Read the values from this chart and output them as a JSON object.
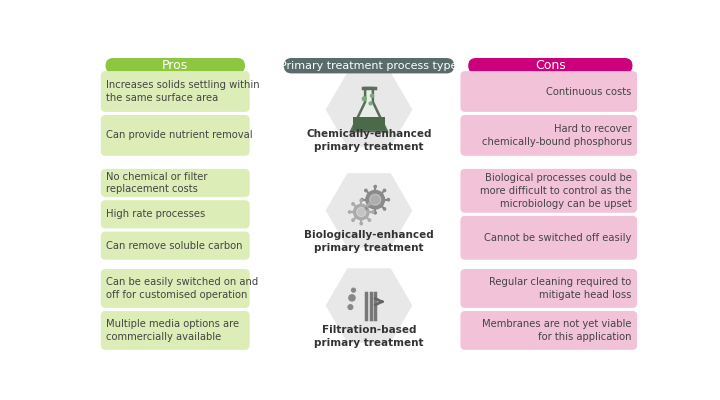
{
  "title_center": "Primary treatment process type",
  "title_left": "Pros",
  "title_right": "Cons",
  "color_pros": "#8dc63f",
  "color_cons": "#cc007a",
  "color_center_header": "#5a6b6b",
  "color_pros_box": "#ddedb8",
  "color_cons_box": "#f2c2d9",
  "color_hexagon": "#e8e8e8",
  "color_hex_border": "#d0d0d0",
  "background": "#ffffff",
  "text_color": "#444444",
  "rows": [
    {
      "center_label": "Chemically-enhanced\nprimary treatment",
      "pros": [
        "Increases solids settling within\nthe same surface area",
        "Can provide nutrient removal"
      ],
      "cons": [
        "Continuous costs",
        "Hard to recover\nchemically-bound phosphorus"
      ]
    },
    {
      "center_label": "Biologically-enhanced\nprimary treatment",
      "pros": [
        "No chemical or filter\nreplacement costs",
        "High rate processes",
        "Can remove soluble carbon"
      ],
      "cons": [
        "Biological processes could be\nmore difficult to control as the\nmicrobiology can be upset",
        "Cannot be switched off easily"
      ]
    },
    {
      "center_label": "Filtration-based\nprimary treatment",
      "pros": [
        "Can be easily switched on and\noff for customised operation",
        "Multiple media options are\ncommercially available"
      ],
      "cons": [
        "Regular cleaning required to\nmitigate head loss",
        "Membranes are not yet viable\nfor this application"
      ]
    }
  ]
}
